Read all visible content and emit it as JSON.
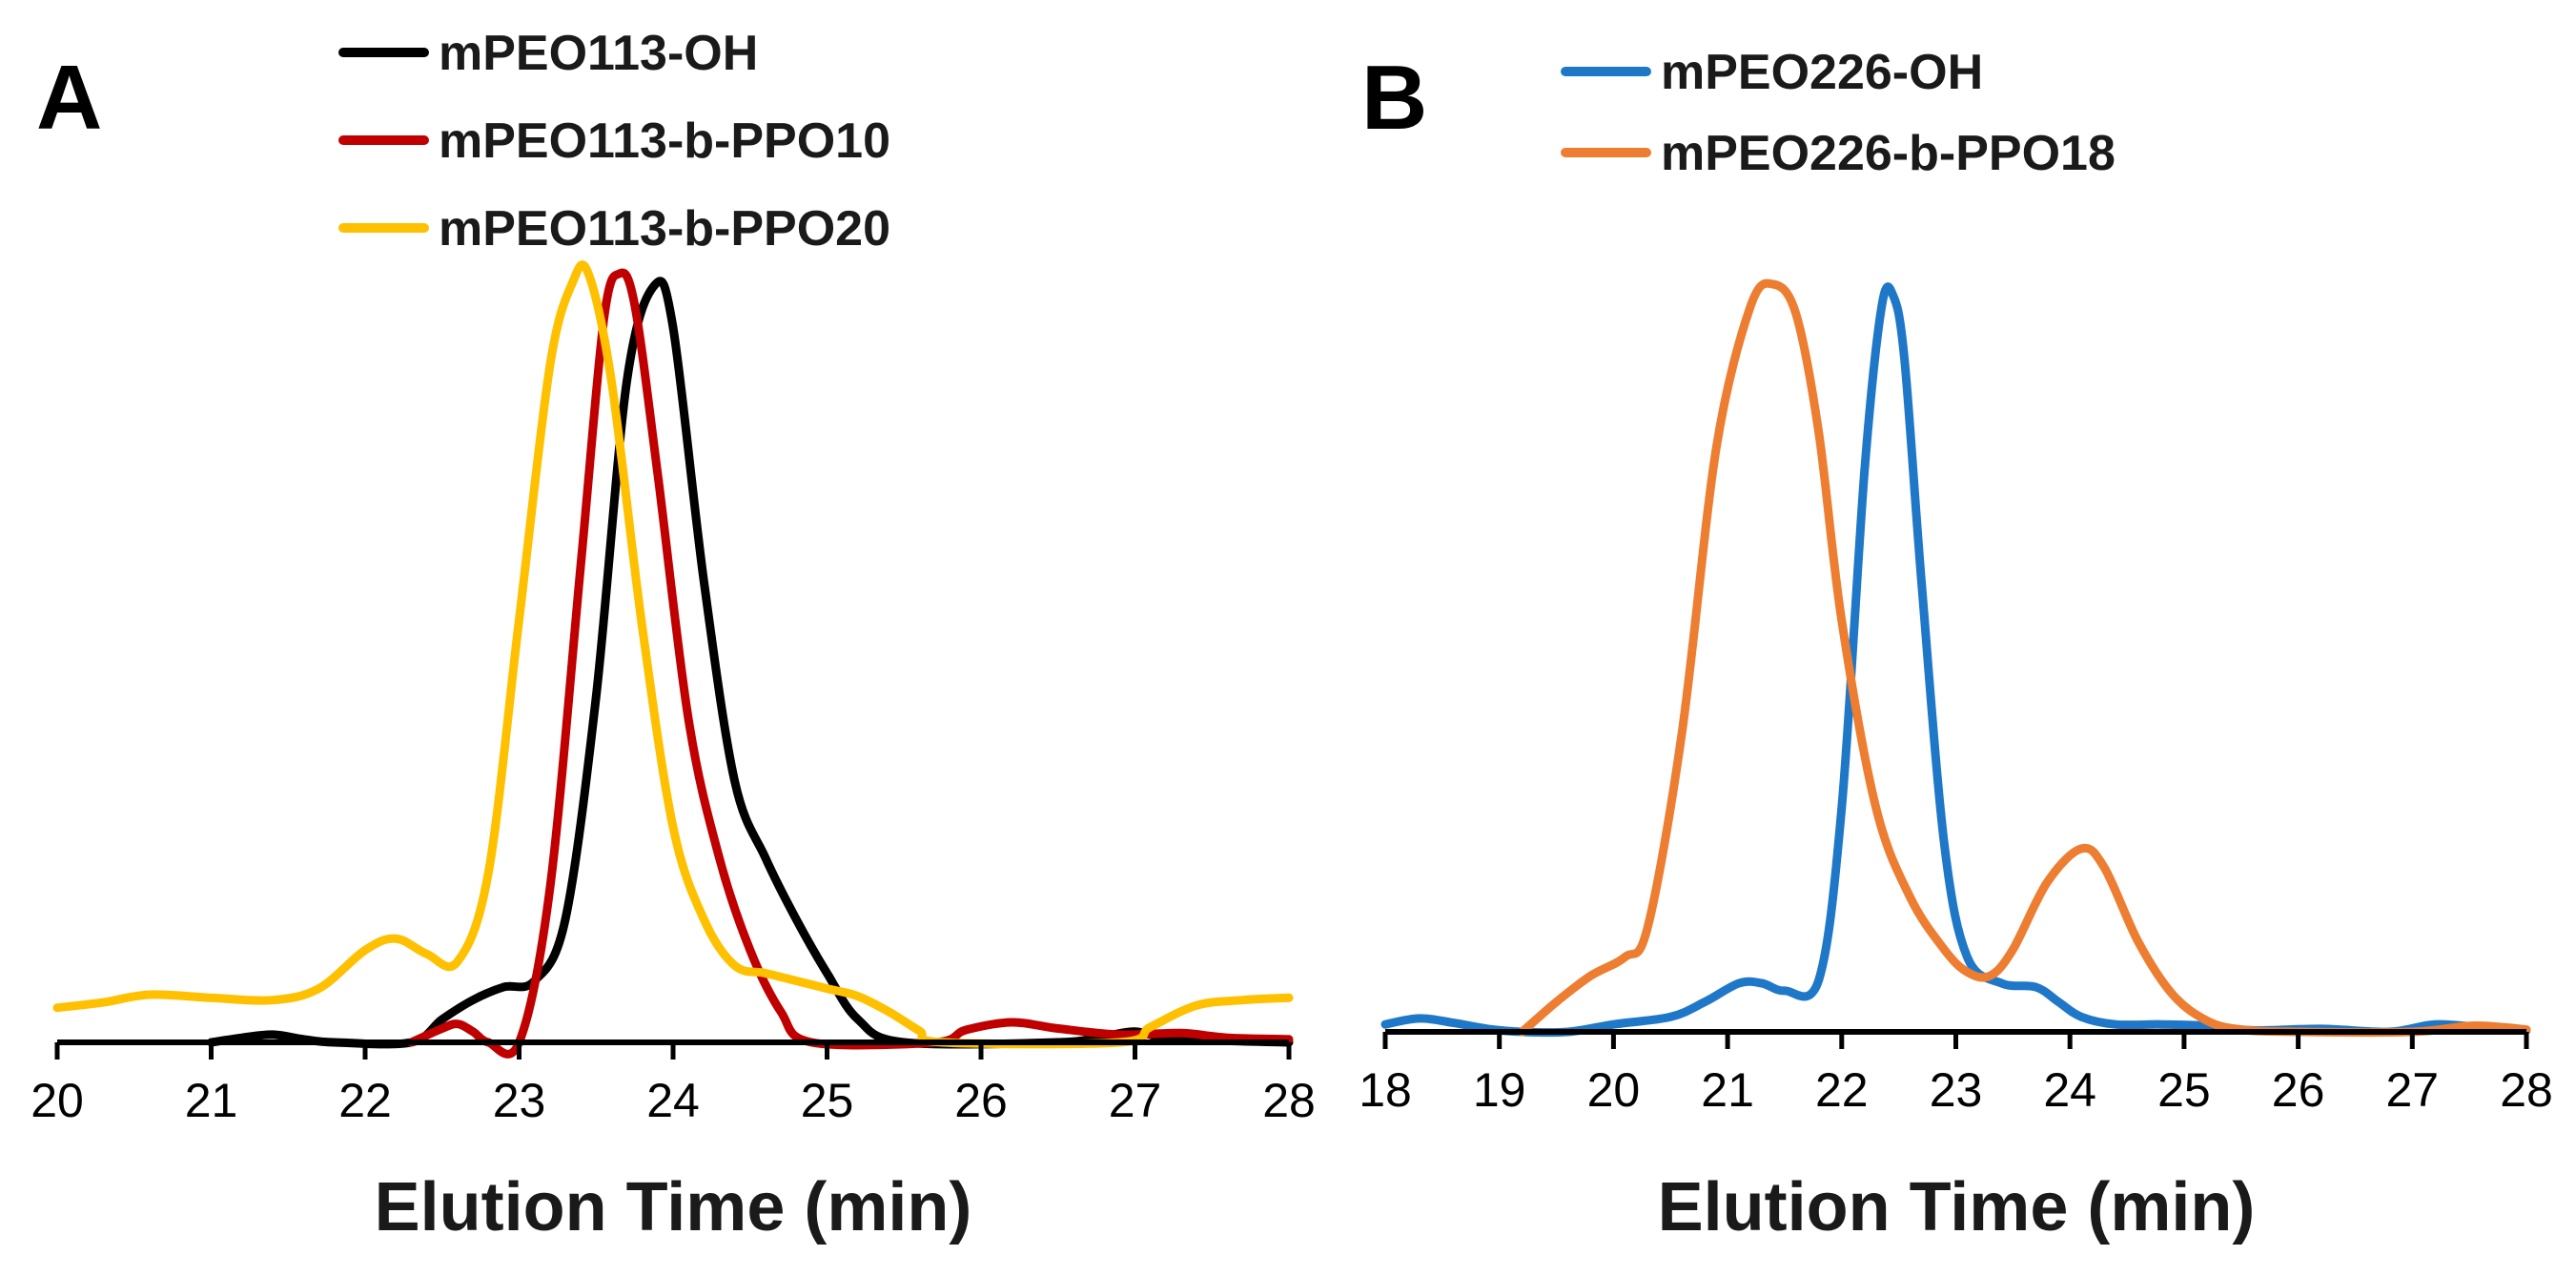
{
  "chart_data": [
    {
      "type": "line",
      "panel_label": "A",
      "title": "",
      "xlabel": "Elution Time (min)",
      "ylabel": "",
      "xlim": [
        20,
        28
      ],
      "ylim": [
        0,
        1
      ],
      "x_ticks": [
        "20",
        "21",
        "22",
        "23",
        "24",
        "25",
        "26",
        "27",
        "28"
      ],
      "grid": false,
      "legend_position": "top-center",
      "series": [
        {
          "name": "mPEO113-OH",
          "color": "#000000",
          "points": [
            [
              21.0,
              0.0
            ],
            [
              21.2,
              0.006
            ],
            [
              21.4,
              0.01
            ],
            [
              21.6,
              0.004
            ],
            [
              21.8,
              0.0
            ],
            [
              22.3,
              0.0
            ],
            [
              22.5,
              0.03
            ],
            [
              22.7,
              0.055
            ],
            [
              22.9,
              0.072
            ],
            [
              23.1,
              0.08
            ],
            [
              23.3,
              0.16
            ],
            [
              23.5,
              0.45
            ],
            [
              23.7,
              0.86
            ],
            [
              23.88,
              0.985
            ],
            [
              24.0,
              0.93
            ],
            [
              24.2,
              0.6
            ],
            [
              24.4,
              0.34
            ],
            [
              24.6,
              0.24
            ],
            [
              24.8,
              0.16
            ],
            [
              25.0,
              0.09
            ],
            [
              25.2,
              0.03
            ],
            [
              25.5,
              0.0
            ],
            [
              26.5,
              0.0
            ],
            [
              26.8,
              0.008
            ],
            [
              27.0,
              0.014
            ],
            [
              27.2,
              0.006
            ],
            [
              27.6,
              0.002
            ],
            [
              28.0,
              0.0
            ]
          ]
        },
        {
          "name": "mPEO113-b-PPO10",
          "color": "#c00000",
          "points": [
            [
              22.3,
              0.0
            ],
            [
              22.5,
              0.018
            ],
            [
              22.6,
              0.024
            ],
            [
              22.7,
              0.014
            ],
            [
              22.8,
              0.0
            ],
            [
              23.0,
              0.0
            ],
            [
              23.2,
              0.2
            ],
            [
              23.4,
              0.62
            ],
            [
              23.55,
              0.94
            ],
            [
              23.65,
              1.0
            ],
            [
              23.75,
              0.96
            ],
            [
              23.9,
              0.74
            ],
            [
              24.1,
              0.42
            ],
            [
              24.3,
              0.24
            ],
            [
              24.5,
              0.12
            ],
            [
              24.7,
              0.04
            ],
            [
              24.9,
              0.0
            ],
            [
              25.7,
              0.0
            ],
            [
              25.9,
              0.016
            ],
            [
              26.2,
              0.026
            ],
            [
              26.5,
              0.018
            ],
            [
              26.9,
              0.01
            ],
            [
              27.3,
              0.012
            ],
            [
              27.6,
              0.006
            ],
            [
              28.0,
              0.004
            ]
          ]
        },
        {
          "name": "mPEO113-b-PPO20",
          "color": "#ffc000",
          "points": [
            [
              20.0,
              0.045
            ],
            [
              20.3,
              0.052
            ],
            [
              20.6,
              0.062
            ],
            [
              21.0,
              0.058
            ],
            [
              21.4,
              0.055
            ],
            [
              21.7,
              0.07
            ],
            [
              22.0,
              0.12
            ],
            [
              22.2,
              0.135
            ],
            [
              22.4,
              0.115
            ],
            [
              22.6,
              0.105
            ],
            [
              22.8,
              0.22
            ],
            [
              23.0,
              0.55
            ],
            [
              23.2,
              0.88
            ],
            [
              23.35,
              0.99
            ],
            [
              23.45,
              1.0
            ],
            [
              23.6,
              0.86
            ],
            [
              23.8,
              0.54
            ],
            [
              24.0,
              0.28
            ],
            [
              24.2,
              0.16
            ],
            [
              24.4,
              0.1
            ],
            [
              24.6,
              0.09
            ],
            [
              24.8,
              0.08
            ],
            [
              25.0,
              0.07
            ],
            [
              25.2,
              0.06
            ],
            [
              25.4,
              0.04
            ],
            [
              25.6,
              0.015
            ],
            [
              25.75,
              0.0
            ],
            [
              26.9,
              0.0
            ],
            [
              27.1,
              0.02
            ],
            [
              27.4,
              0.048
            ],
            [
              27.7,
              0.055
            ],
            [
              28.0,
              0.058
            ]
          ]
        }
      ]
    },
    {
      "type": "line",
      "panel_label": "B",
      "title": "",
      "xlabel": "Elution Time (min)",
      "ylabel": "",
      "xlim": [
        18,
        28
      ],
      "ylim": [
        0,
        1
      ],
      "x_ticks": [
        "18",
        "19",
        "20",
        "21",
        "22",
        "23",
        "24",
        "25",
        "26",
        "27",
        "28"
      ],
      "grid": false,
      "legend_position": "top-center",
      "series": [
        {
          "name": "mPEO226-OH",
          "color": "#1f77c8",
          "points": [
            [
              18.0,
              0.01
            ],
            [
              18.3,
              0.018
            ],
            [
              18.6,
              0.012
            ],
            [
              18.9,
              0.004
            ],
            [
              19.2,
              0.0
            ],
            [
              19.6,
              0.0
            ],
            [
              20.0,
              0.01
            ],
            [
              20.5,
              0.02
            ],
            [
              20.8,
              0.04
            ],
            [
              21.1,
              0.065
            ],
            [
              21.3,
              0.065
            ],
            [
              21.5,
              0.055
            ],
            [
              21.8,
              0.07
            ],
            [
              22.0,
              0.3
            ],
            [
              22.2,
              0.75
            ],
            [
              22.35,
              0.97
            ],
            [
              22.45,
              0.985
            ],
            [
              22.55,
              0.9
            ],
            [
              22.7,
              0.6
            ],
            [
              22.9,
              0.25
            ],
            [
              23.1,
              0.1
            ],
            [
              23.4,
              0.065
            ],
            [
              23.7,
              0.06
            ],
            [
              23.9,
              0.04
            ],
            [
              24.1,
              0.02
            ],
            [
              24.4,
              0.01
            ],
            [
              24.8,
              0.01
            ],
            [
              25.2,
              0.008
            ],
            [
              25.6,
              0.002
            ],
            [
              26.2,
              0.004
            ],
            [
              26.8,
              0.0
            ],
            [
              27.2,
              0.01
            ],
            [
              27.6,
              0.006
            ],
            [
              28.0,
              0.002
            ]
          ]
        },
        {
          "name": "mPEO226-b-PPO18",
          "color": "#ed7d31",
          "points": [
            [
              19.2,
              0.0
            ],
            [
              19.5,
              0.04
            ],
            [
              19.8,
              0.075
            ],
            [
              20.1,
              0.1
            ],
            [
              20.3,
              0.14
            ],
            [
              20.6,
              0.4
            ],
            [
              20.9,
              0.78
            ],
            [
              21.2,
              0.97
            ],
            [
              21.4,
              1.0
            ],
            [
              21.6,
              0.96
            ],
            [
              21.8,
              0.8
            ],
            [
              22.0,
              0.55
            ],
            [
              22.3,
              0.3
            ],
            [
              22.6,
              0.18
            ],
            [
              22.9,
              0.11
            ],
            [
              23.1,
              0.08
            ],
            [
              23.3,
              0.075
            ],
            [
              23.5,
              0.11
            ],
            [
              23.8,
              0.2
            ],
            [
              24.1,
              0.245
            ],
            [
              24.3,
              0.22
            ],
            [
              24.6,
              0.12
            ],
            [
              24.9,
              0.05
            ],
            [
              25.2,
              0.015
            ],
            [
              25.5,
              0.003
            ],
            [
              26.0,
              0.0
            ],
            [
              27.0,
              0.0
            ],
            [
              27.5,
              0.008
            ],
            [
              27.8,
              0.006
            ],
            [
              28.0,
              0.003
            ]
          ]
        }
      ]
    }
  ]
}
